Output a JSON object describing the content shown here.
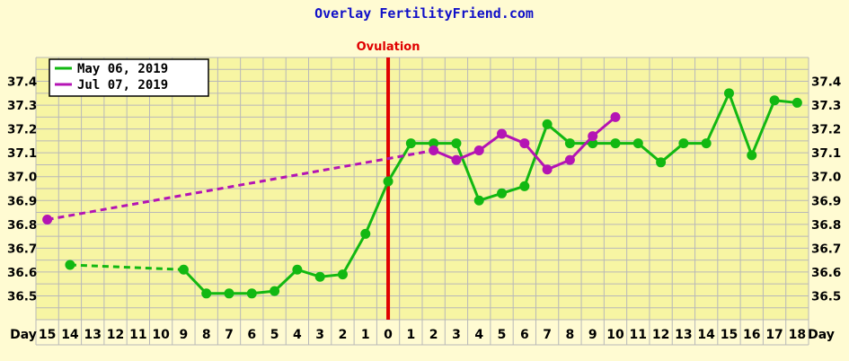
{
  "title": "Overlay FertilityFriend.com",
  "ovulation_label": "Ovulation",
  "day_label": "Day",
  "colors": {
    "background": "#fffbd2",
    "plot_background": "#f7f5a3",
    "grid": "#b8b8b8",
    "title": "#1010c8",
    "ovulation_line": "#e00000",
    "series_1": "#12b812",
    "series_2": "#b414b4"
  },
  "chart_data": {
    "type": "line",
    "title": "Overlay FertilityFriend.com",
    "xlabel": "Day",
    "ylabel": "",
    "x_ticks": [
      "15",
      "14",
      "13",
      "12",
      "11",
      "10",
      "9",
      "8",
      "7",
      "6",
      "5",
      "4",
      "3",
      "2",
      "1",
      "0",
      "1",
      "2",
      "3",
      "4",
      "5",
      "6",
      "7",
      "8",
      "9",
      "10",
      "11",
      "12",
      "13",
      "14",
      "15",
      "16",
      "17",
      "18"
    ],
    "ovulation_index": 15,
    "ylim": [
      36.4,
      37.5
    ],
    "y_ticks": [
      "36.5",
      "36.6",
      "36.7",
      "36.8",
      "36.9",
      "37.0",
      "37.1",
      "37.2",
      "37.3",
      "37.4"
    ],
    "grid": true,
    "legend_position": "top-left",
    "series": [
      {
        "name": "May 06, 2019",
        "color": "#12b812",
        "points": [
          {
            "i": 1,
            "y": 36.63
          },
          {
            "i": 6,
            "y": 36.61,
            "dashed_from_prev": true
          },
          {
            "i": 7,
            "y": 36.51
          },
          {
            "i": 8,
            "y": 36.51
          },
          {
            "i": 9,
            "y": 36.51
          },
          {
            "i": 10,
            "y": 36.52
          },
          {
            "i": 11,
            "y": 36.61
          },
          {
            "i": 12,
            "y": 36.58
          },
          {
            "i": 13,
            "y": 36.59
          },
          {
            "i": 14,
            "y": 36.76
          },
          {
            "i": 15,
            "y": 36.98
          },
          {
            "i": 16,
            "y": 37.14
          },
          {
            "i": 17,
            "y": 37.14
          },
          {
            "i": 18,
            "y": 37.14
          },
          {
            "i": 19,
            "y": 36.9
          },
          {
            "i": 20,
            "y": 36.93
          },
          {
            "i": 21,
            "y": 36.96
          },
          {
            "i": 22,
            "y": 37.22
          },
          {
            "i": 23,
            "y": 37.14
          },
          {
            "i": 24,
            "y": 37.14
          },
          {
            "i": 25,
            "y": 37.14
          },
          {
            "i": 26,
            "y": 37.14
          },
          {
            "i": 27,
            "y": 37.06
          },
          {
            "i": 28,
            "y": 37.14
          },
          {
            "i": 29,
            "y": 37.14
          },
          {
            "i": 30,
            "y": 37.35
          },
          {
            "i": 31,
            "y": 37.09
          },
          {
            "i": 32,
            "y": 37.32
          },
          {
            "i": 33,
            "y": 37.31
          }
        ]
      },
      {
        "name": "Jul 07, 2019",
        "color": "#b414b4",
        "points": [
          {
            "i": 0,
            "y": 36.82
          },
          {
            "i": 17,
            "y": 37.11,
            "dashed_from_prev": true
          },
          {
            "i": 18,
            "y": 37.07
          },
          {
            "i": 19,
            "y": 37.11
          },
          {
            "i": 20,
            "y": 37.18
          },
          {
            "i": 21,
            "y": 37.14
          },
          {
            "i": 22,
            "y": 37.03
          },
          {
            "i": 23,
            "y": 37.07
          },
          {
            "i": 24,
            "y": 37.17
          },
          {
            "i": 25,
            "y": 37.25
          }
        ]
      }
    ]
  }
}
